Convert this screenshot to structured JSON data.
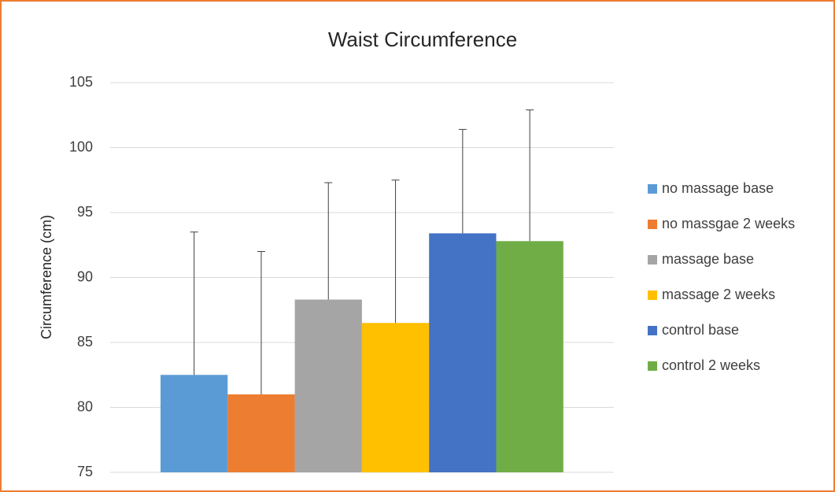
{
  "chart_data": {
    "type": "bar",
    "title": "Waist Circumference",
    "ylabel": "Circumference (cm)",
    "series": [
      {
        "name": "no massage base",
        "color": "#5b9bd5",
        "values": [
          82.5
        ],
        "errors": [
          11
        ]
      },
      {
        "name": "no massgae 2 weeks",
        "color": "#ed7d31",
        "values": [
          81
        ],
        "errors": [
          11
        ]
      },
      {
        "name": "massage base",
        "color": "#a5a5a5",
        "values": [
          88.3
        ],
        "errors": [
          9
        ]
      },
      {
        "name": "massage 2 weeks",
        "color": "#ffc000",
        "values": [
          86.5
        ],
        "errors": [
          11
        ]
      },
      {
        "name": "control base",
        "color": "#4472c4",
        "values": [
          93.4
        ],
        "errors": [
          8
        ]
      },
      {
        "name": "control 2 weeks",
        "color": "#70ad47",
        "values": [
          92.8
        ],
        "errors": [
          10.1
        ]
      }
    ],
    "ylim": [
      75,
      105
    ],
    "yticks": [
      75,
      80,
      85,
      90,
      95,
      100,
      105
    ],
    "grid": true,
    "legend": "right"
  }
}
